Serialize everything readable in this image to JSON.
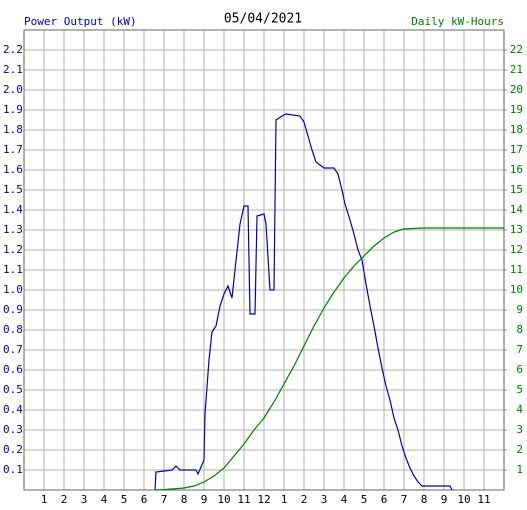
{
  "chart_data": {
    "type": "line",
    "title": "05/04/2021",
    "y_label": "Power Output (kW)",
    "y2_label": "Daily kW-Hours",
    "y_label_color": "#0000c0",
    "y2_label_color": "#008000",
    "grid": true,
    "xlim": [
      0,
      24
    ],
    "xticks": [
      1,
      2,
      3,
      4,
      5,
      6,
      7,
      8,
      9,
      10,
      11,
      12,
      {
        "value": 13,
        "label": "1"
      },
      {
        "value": 14,
        "label": "2"
      },
      {
        "value": 15,
        "label": "3"
      },
      {
        "value": 16,
        "label": "4"
      },
      {
        "value": 17,
        "label": "5"
      },
      {
        "value": 18,
        "label": "6"
      },
      {
        "value": 19,
        "label": "7"
      },
      {
        "value": 20,
        "label": "8"
      },
      {
        "value": 21,
        "label": "9"
      },
      {
        "value": 22,
        "label": "10"
      },
      {
        "value": 23,
        "label": "11"
      }
    ],
    "ylim": [
      0,
      2.3
    ],
    "yticks": [
      0.1,
      0.2,
      0.3,
      0.4,
      0.5,
      0.6,
      0.7,
      0.8,
      0.9,
      {
        "value": 1,
        "label": "1.0"
      },
      1.1,
      1.2,
      1.3,
      1.4,
      1.5,
      1.6,
      1.7,
      1.8,
      1.9,
      {
        "value": 2,
        "label": "2.0"
      },
      2.1,
      2.2
    ],
    "y2lim": [
      0,
      23
    ],
    "y2ticks": [
      1,
      2,
      3,
      4,
      5,
      6,
      7,
      8,
      9,
      10,
      11,
      12,
      13,
      14,
      15,
      16,
      17,
      18,
      19,
      20,
      21,
      22
    ],
    "series": [
      {
        "name": "Power Output",
        "color": "#0000c0",
        "x": [
          6.55,
          6.6,
          7.4,
          7.6,
          7.8,
          8.6,
          8.7,
          9.0,
          9.05,
          9.25,
          9.4,
          9.6,
          9.8,
          10.0,
          10.2,
          10.4,
          10.8,
          11.0,
          11.2,
          11.3,
          11.55,
          11.65,
          12.0,
          12.1,
          12.3,
          12.5,
          12.6,
          12.9,
          13.1,
          13.8,
          14.0,
          14.2,
          14.4,
          14.6,
          15.0,
          15.5,
          15.7,
          15.9,
          16.05,
          16.3,
          16.5,
          16.7,
          16.9,
          17.1,
          17.3,
          17.5,
          17.7,
          17.9,
          18.1,
          18.3,
          18.5,
          18.7,
          18.9,
          19.1,
          19.3,
          19.5,
          19.7,
          19.9,
          21.3,
          21.4
        ],
        "values": [
          0,
          0.09,
          0.1,
          0.12,
          0.1,
          0.1,
          0.08,
          0.15,
          0.38,
          0.65,
          0.79,
          0.82,
          0.92,
          0.98,
          1.02,
          0.96,
          1.33,
          1.42,
          1.42,
          0.88,
          0.88,
          1.37,
          1.38,
          1.33,
          1.0,
          1.0,
          1.85,
          1.87,
          1.88,
          1.87,
          1.84,
          1.77,
          1.7,
          1.64,
          1.61,
          1.61,
          1.58,
          1.5,
          1.43,
          1.35,
          1.28,
          1.2,
          1.15,
          1.03,
          0.92,
          0.82,
          0.71,
          0.61,
          0.52,
          0.45,
          0.36,
          0.3,
          0.22,
          0.16,
          0.11,
          0.07,
          0.04,
          0.02,
          0.02,
          0
        ]
      },
      {
        "name": "Daily kW-Hours",
        "color": "#008000",
        "axis": "y2",
        "x": [
          6.6,
          7,
          8,
          8.5,
          9,
          9.5,
          10,
          10.5,
          11,
          11.5,
          12,
          12.5,
          13,
          13.5,
          14,
          14.5,
          15,
          15.5,
          16,
          16.5,
          17,
          17.5,
          18,
          18.5,
          19,
          20,
          24
        ],
        "values": [
          0,
          0.02,
          0.1,
          0.2,
          0.4,
          0.7,
          1.1,
          1.7,
          2.3,
          3.0,
          3.6,
          4.4,
          5.3,
          6.2,
          7.2,
          8.2,
          9.1,
          9.9,
          10.6,
          11.2,
          11.7,
          12.2,
          12.6,
          12.9,
          13.05,
          13.1,
          13.1
        ]
      }
    ]
  }
}
